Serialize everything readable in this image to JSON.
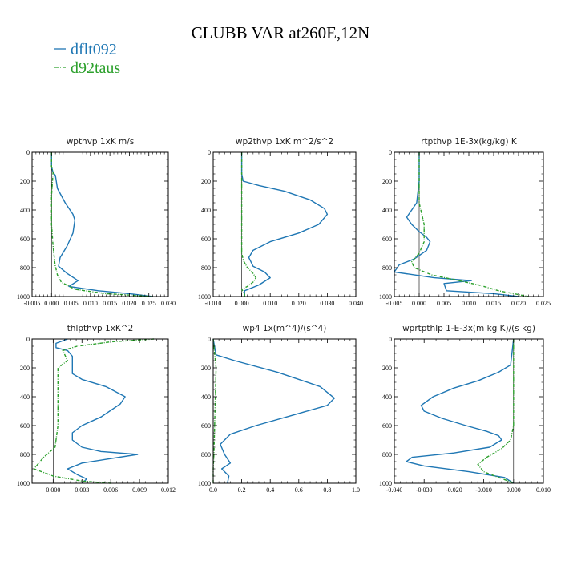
{
  "title": "CLUBB VAR at260E,12N",
  "legend": [
    {
      "name": "dflt092",
      "color": "#1f77b4"
    },
    {
      "name": "d92taus",
      "color": "#2ca02c"
    }
  ],
  "chart_data": [
    {
      "type": "line",
      "title": "wpthvp   1xK  m/s",
      "xlim": [
        -0.005,
        0.03
      ],
      "xticks": [
        "-0.005",
        "0.000",
        "0.005",
        "0.010",
        "0.015",
        "0.020",
        "0.025",
        "0.030"
      ],
      "xtickvals": [
        -0.005,
        0.0,
        0.005,
        0.01,
        0.015,
        0.02,
        0.025,
        0.03
      ],
      "ylim": [
        0,
        1000
      ],
      "yticks": [
        "0",
        "200",
        "400",
        "600",
        "800",
        "1000"
      ],
      "ytickvals": [
        0,
        200,
        400,
        600,
        800,
        1000
      ],
      "y_inverted": true,
      "series": [
        {
          "name": "dflt092",
          "x": [
            0.0,
            0.0,
            0.0004,
            0.001,
            0.0015,
            0.0035,
            0.0055,
            0.006,
            0.0055,
            0.004,
            0.0022,
            0.0018,
            0.004,
            0.0068,
            0.0045,
            0.012,
            0.02,
            0.026
          ],
          "y": [
            0,
            100,
            140,
            160,
            250,
            350,
            430,
            470,
            560,
            650,
            730,
            790,
            840,
            890,
            930,
            960,
            980,
            1000
          ]
        },
        {
          "name": "d92taus",
          "x": [
            0.0,
            0.0,
            0.0004,
            0.0,
            0.0,
            0.0004,
            0.0009,
            0.0015,
            0.0025,
            0.006,
            0.014,
            0.026
          ],
          "y": [
            0,
            100,
            140,
            300,
            500,
            650,
            780,
            850,
            900,
            950,
            980,
            1000
          ]
        }
      ]
    },
    {
      "type": "line",
      "title": "wp2thvp   1xK  m^2/s^2",
      "xlim": [
        -0.01,
        0.04
      ],
      "xticks": [
        "-0.010",
        "0.000",
        "0.010",
        "0.020",
        "0.030",
        "0.040"
      ],
      "xtickvals": [
        -0.01,
        0.0,
        0.01,
        0.02,
        0.03,
        0.04
      ],
      "ylim": [
        0,
        1000
      ],
      "yticks": [
        "0",
        "200",
        "400",
        "600",
        "800",
        "1000"
      ],
      "ytickvals": [
        0,
        200,
        400,
        600,
        800,
        1000
      ],
      "y_inverted": true,
      "series": [
        {
          "name": "dflt092",
          "x": [
            0.0,
            0.0,
            0.0005,
            0.006,
            0.015,
            0.024,
            0.029,
            0.03,
            0.027,
            0.02,
            0.01,
            0.004,
            0.0025,
            0.004,
            0.008,
            0.01,
            0.006,
            0.001,
            0.001
          ],
          "y": [
            0,
            150,
            200,
            230,
            270,
            330,
            390,
            430,
            500,
            560,
            620,
            680,
            730,
            790,
            830,
            870,
            920,
            960,
            1000
          ]
        },
        {
          "name": "d92taus",
          "x": [
            0.0,
            0.0,
            0.0,
            0.0006,
            0.002,
            0.004,
            0.005,
            0.004,
            0.002,
            0.0,
            0.001,
            0.001
          ],
          "y": [
            0,
            150,
            700,
            750,
            800,
            840,
            870,
            900,
            930,
            950,
            980,
            1000
          ]
        }
      ]
    },
    {
      "type": "line",
      "title": "rtpthvp   1E-3x(kg/kg)  K",
      "xlim": [
        -0.005,
        0.025
      ],
      "xticks": [
        "-0.005",
        "0.000",
        "0.005",
        "0.010",
        "0.015",
        "0.020",
        "0.025"
      ],
      "xtickvals": [
        -0.005,
        0.0,
        0.005,
        0.01,
        0.015,
        0.02,
        0.025
      ],
      "ylim": [
        0,
        1000
      ],
      "yticks": [
        "0",
        "200",
        "400",
        "600",
        "800",
        "1000"
      ],
      "ytickvals": [
        0,
        200,
        400,
        600,
        800,
        1000
      ],
      "y_inverted": true,
      "series": [
        {
          "name": "dflt092",
          "x": [
            0.0,
            0.0,
            -0.0005,
            -0.0015,
            -0.0025,
            -0.0015,
            0.0,
            0.0015,
            0.0022,
            0.0015,
            -0.001,
            -0.004,
            -0.005,
            0.003,
            0.0105,
            0.005,
            0.0055,
            0.015,
            0.02
          ],
          "y": [
            0,
            200,
            350,
            400,
            450,
            500,
            550,
            590,
            620,
            680,
            740,
            780,
            830,
            870,
            890,
            910,
            960,
            980,
            1000
          ]
        },
        {
          "name": "d92taus",
          "x": [
            0.0,
            0.0,
            0.001,
            0.001,
            0.0,
            -0.0015,
            -0.001,
            0.0025,
            0.008,
            0.012,
            0.016,
            0.022
          ],
          "y": [
            0,
            350,
            500,
            620,
            700,
            760,
            800,
            850,
            890,
            920,
            960,
            1000
          ]
        }
      ]
    },
    {
      "type": "line",
      "title": "thlpthvp   1xK^2",
      "xlim": [
        -0.0022,
        0.012
      ],
      "xticks": [
        "0.000",
        "0.003",
        "0.006",
        "0.009",
        "0.012"
      ],
      "xtickvals": [
        0.0,
        0.003,
        0.006,
        0.009,
        0.012
      ],
      "ylim": [
        0,
        1000
      ],
      "yticks": [
        "0",
        "200",
        "400",
        "600",
        "800",
        "1000"
      ],
      "ytickvals": [
        0,
        200,
        400,
        600,
        800,
        1000
      ],
      "y_inverted": true,
      "series": [
        {
          "name": "dflt092",
          "x": [
            0.0015,
            0.0003,
            0.0003,
            0.0015,
            0.002,
            0.002,
            0.002,
            0.003,
            0.0055,
            0.0075,
            0.007,
            0.005,
            0.003,
            0.002,
            0.002,
            0.003,
            0.005,
            0.0088,
            0.003,
            0.0015,
            0.0025,
            0.0035,
            0.003
          ],
          "y": [
            0,
            30,
            60,
            80,
            120,
            180,
            240,
            280,
            330,
            400,
            450,
            540,
            600,
            650,
            700,
            750,
            780,
            800,
            860,
            900,
            940,
            970,
            1000
          ]
        },
        {
          "name": "d92taus",
          "x": [
            0.0105,
            0.006,
            0.0025,
            0.001,
            0.0015,
            0.0005,
            0.0005,
            0.0005,
            0.0002,
            -0.001,
            -0.002,
            0.0,
            0.003,
            0.006
          ],
          "y": [
            0,
            20,
            50,
            80,
            150,
            200,
            400,
            600,
            750,
            820,
            900,
            950,
            985,
            1000
          ]
        }
      ]
    },
    {
      "type": "line",
      "title": "wp4   1x(m^4)/(s^4)",
      "xlim": [
        0.0,
        1.0
      ],
      "xticks": [
        "0.0",
        "0.2",
        "0.4",
        "0.6",
        "0.8",
        "1.0"
      ],
      "xtickvals": [
        0.0,
        0.2,
        0.4,
        0.6,
        0.8,
        1.0
      ],
      "ylim": [
        0,
        1000
      ],
      "yticks": [
        "0",
        "200",
        "400",
        "600",
        "800",
        "1000"
      ],
      "ytickvals": [
        0,
        200,
        400,
        600,
        800,
        1000
      ],
      "y_inverted": true,
      "series": [
        {
          "name": "dflt092",
          "x": [
            0.0,
            0.02,
            0.15,
            0.45,
            0.75,
            0.85,
            0.8,
            0.55,
            0.3,
            0.12,
            0.05,
            0.08,
            0.12,
            0.06,
            0.11,
            0.1
          ],
          "y": [
            0,
            110,
            150,
            230,
            330,
            410,
            460,
            530,
            600,
            660,
            730,
            800,
            860,
            900,
            950,
            1000
          ]
        },
        {
          "name": "d92taus",
          "x": [
            0.0,
            0.02,
            0.015,
            0.01,
            0.005,
            0.0,
            0.0
          ],
          "y": [
            0,
            200,
            400,
            600,
            800,
            900,
            1000
          ]
        }
      ]
    },
    {
      "type": "line",
      "title": "wprtpthlp   1-E-3x(m kg K)/(s kg)",
      "xlim": [
        -0.04,
        0.01
      ],
      "xticks": [
        "-0.040",
        "-0.030",
        "-0.020",
        "-0.010",
        "0.000",
        "0.010"
      ],
      "xtickvals": [
        -0.04,
        -0.03,
        -0.02,
        -0.01,
        0.0,
        0.01
      ],
      "ylim": [
        0,
        1000
      ],
      "yticks": [
        "0",
        "200",
        "400",
        "600",
        "800",
        "1000"
      ],
      "ytickvals": [
        0,
        200,
        400,
        600,
        800,
        1000
      ],
      "y_inverted": true,
      "series": [
        {
          "name": "dflt092",
          "x": [
            0.0,
            -0.001,
            -0.005,
            -0.012,
            -0.02,
            -0.027,
            -0.031,
            -0.03,
            -0.024,
            -0.016,
            -0.009,
            -0.005,
            -0.004,
            -0.008,
            -0.02,
            -0.034,
            -0.036,
            -0.03,
            -0.015,
            -0.003,
            0.0
          ],
          "y": [
            0,
            180,
            230,
            290,
            340,
            400,
            460,
            500,
            550,
            600,
            640,
            670,
            700,
            750,
            790,
            820,
            850,
            880,
            920,
            960,
            1000
          ]
        },
        {
          "name": "d92taus",
          "x": [
            0.0,
            0.0,
            0.0,
            -0.001,
            -0.004,
            -0.009,
            -0.012,
            -0.01,
            -0.005,
            -0.001,
            0.0
          ],
          "y": [
            0,
            200,
            600,
            700,
            760,
            820,
            870,
            920,
            960,
            990,
            1000
          ]
        }
      ]
    }
  ]
}
